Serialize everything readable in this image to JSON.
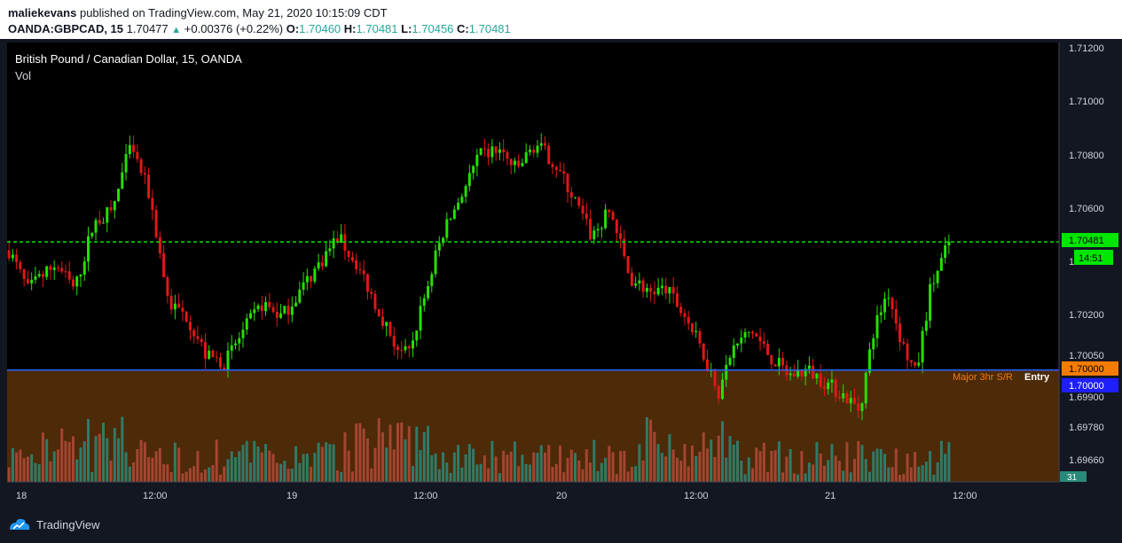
{
  "header": {
    "author": "maliekevans",
    "published_text": "published on TradingView.com, May 21, 2020 10:15:09 CDT",
    "symbol": "OANDA:GBPCAD, 15",
    "last": "1.70477",
    "change": "+0.00376 (+0.22%)",
    "o_label": "O:",
    "o_value": "1.70460",
    "h_label": "H:",
    "h_value": "1.70481",
    "l_label": "L:",
    "l_value": "1.70456",
    "c_label": "C:",
    "c_value": "1.70481"
  },
  "legend": {
    "title": "British Pound / Canadian Dollar, 15, OANDA",
    "vol_label": "Vol"
  },
  "price_axis": {
    "ticks": [
      "1.71200",
      "1.71000",
      "1.70800",
      "1.70600",
      "1.70200",
      "1.70050",
      "1.69900",
      "1.69780",
      "1.69660"
    ],
    "partial_tick": "1"
  },
  "price_labels": {
    "last_price": "1.70481",
    "countdown": "14:51",
    "zone_top": "1.70000",
    "entry_line": "1.70000",
    "volume": "31"
  },
  "annotations": {
    "zone_text": "Major 3hr S/R",
    "entry_text": "Entry"
  },
  "time_axis": {
    "labels": [
      "18",
      "12:00",
      "19",
      "12:00",
      "20",
      "12:00",
      "21",
      "12:00"
    ]
  },
  "footer": {
    "brand": "TradingView"
  },
  "colors": {
    "up": "#26e000",
    "down": "#e01818",
    "zone": "#4d2a08",
    "zone_label": "#f57c00",
    "entry_line": "#2962ff",
    "last_line": "#00e600",
    "vol_up": "#2a8a7a",
    "vol_down": "#b44a3a"
  },
  "chart_data": {
    "type": "candlestick",
    "title": "British Pound / Canadian Dollar, 15, OANDA",
    "x_labels": [
      "18",
      "12:00",
      "19",
      "12:00",
      "20",
      "12:00",
      "21",
      "12:00"
    ],
    "ylim": [
      1.6958,
      1.7123
    ],
    "path_anchors": [
      {
        "t": 0,
        "p": 1.7045
      },
      {
        "t": 0.02,
        "p": 1.703
      },
      {
        "t": 0.05,
        "p": 1.704
      },
      {
        "t": 0.07,
        "p": 1.703
      },
      {
        "t": 0.09,
        "p": 1.7055
      },
      {
        "t": 0.11,
        "p": 1.706
      },
      {
        "t": 0.13,
        "p": 1.7085
      },
      {
        "t": 0.15,
        "p": 1.7065
      },
      {
        "t": 0.17,
        "p": 1.7025
      },
      {
        "t": 0.19,
        "p": 1.702
      },
      {
        "t": 0.21,
        "p": 1.7005
      },
      {
        "t": 0.23,
        "p": 1.7003
      },
      {
        "t": 0.25,
        "p": 1.7015
      },
      {
        "t": 0.27,
        "p": 1.7025
      },
      {
        "t": 0.29,
        "p": 1.702
      },
      {
        "t": 0.31,
        "p": 1.703
      },
      {
        "t": 0.33,
        "p": 1.704
      },
      {
        "t": 0.35,
        "p": 1.705
      },
      {
        "t": 0.37,
        "p": 1.704
      },
      {
        "t": 0.39,
        "p": 1.7025
      },
      {
        "t": 0.41,
        "p": 1.701
      },
      {
        "t": 0.425,
        "p": 1.7005
      },
      {
        "t": 0.44,
        "p": 1.7025
      },
      {
        "t": 0.46,
        "p": 1.705
      },
      {
        "t": 0.48,
        "p": 1.7065
      },
      {
        "t": 0.5,
        "p": 1.708
      },
      {
        "t": 0.52,
        "p": 1.7083
      },
      {
        "t": 0.54,
        "p": 1.7075
      },
      {
        "t": 0.56,
        "p": 1.7085
      },
      {
        "t": 0.58,
        "p": 1.7078
      },
      {
        "t": 0.6,
        "p": 1.7065
      },
      {
        "t": 0.62,
        "p": 1.705
      },
      {
        "t": 0.64,
        "p": 1.706
      },
      {
        "t": 0.66,
        "p": 1.7035
      },
      {
        "t": 0.68,
        "p": 1.703
      },
      {
        "t": 0.7,
        "p": 1.703
      },
      {
        "t": 0.72,
        "p": 1.702
      },
      {
        "t": 0.74,
        "p": 1.7005
      },
      {
        "t": 0.755,
        "p": 1.6992
      },
      {
        "t": 0.77,
        "p": 1.7008
      },
      {
        "t": 0.79,
        "p": 1.7015
      },
      {
        "t": 0.81,
        "p": 1.7005
      },
      {
        "t": 0.83,
        "p": 1.6998
      },
      {
        "t": 0.85,
        "p": 1.7
      },
      {
        "t": 0.87,
        "p": 1.6995
      },
      {
        "t": 0.89,
        "p": 1.699
      },
      {
        "t": 0.905,
        "p": 1.6985
      },
      {
        "t": 0.92,
        "p": 1.7015
      },
      {
        "t": 0.935,
        "p": 1.703
      },
      {
        "t": 0.95,
        "p": 1.701
      },
      {
        "t": 0.965,
        "p": 1.6998
      },
      {
        "t": 0.98,
        "p": 1.703
      },
      {
        "t": 1,
        "p": 1.7048
      }
    ],
    "candle_count": 250,
    "last_price": 1.70481,
    "support_zone": {
      "from": 1.6958,
      "to": 1.7,
      "label": "Major 3hr S/R"
    },
    "entry_level": {
      "value": 1.7,
      "label": "Entry"
    },
    "current_price_line": 1.70481
  }
}
